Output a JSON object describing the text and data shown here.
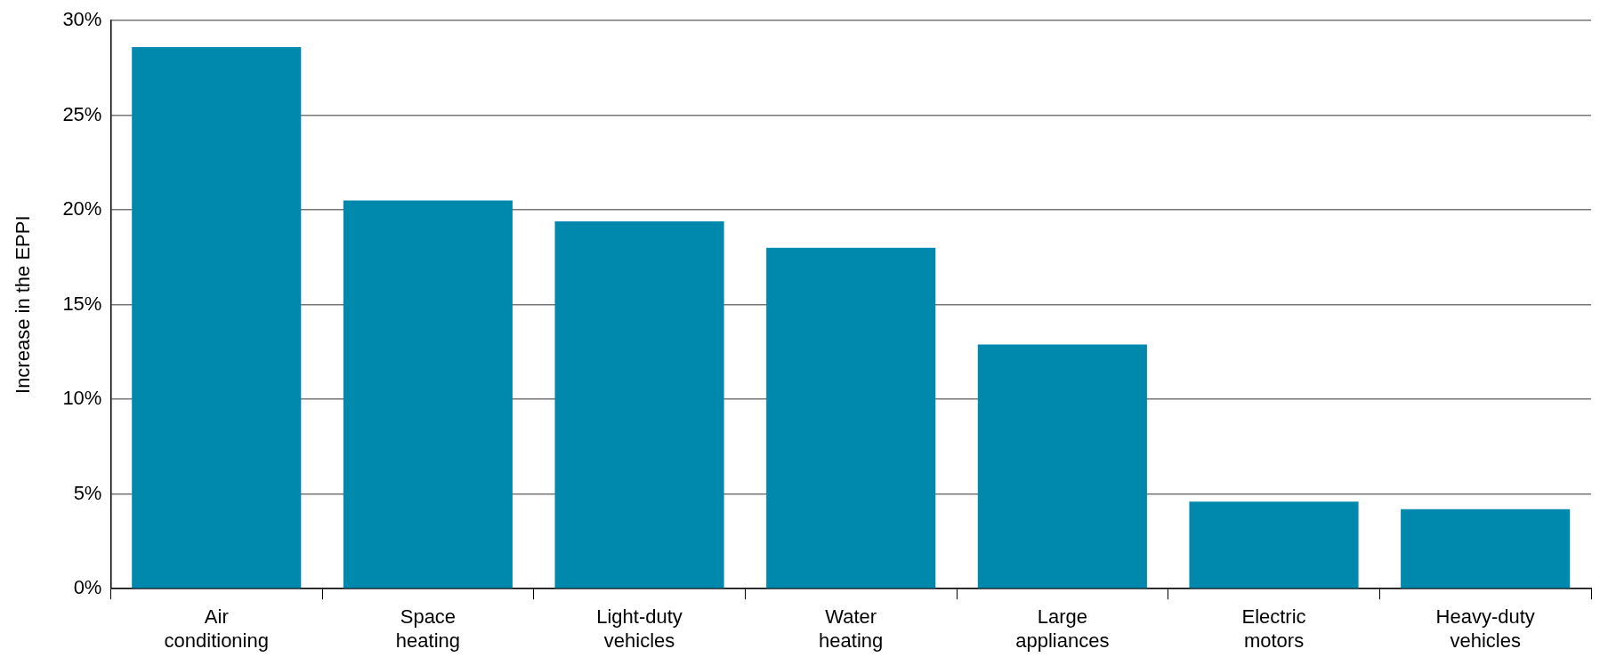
{
  "chart_data": {
    "type": "bar",
    "ylabel": "Increase in the EPPI",
    "categories": [
      "Air conditioning",
      "Space heating",
      "Light-duty vehicles",
      "Water heating",
      "Large appliances",
      "Electric motors",
      "Heavy-duty vehicles"
    ],
    "values": [
      28.6,
      20.5,
      19.4,
      18.0,
      12.9,
      4.6,
      4.2
    ],
    "color": "#0089ad",
    "ylim": [
      0,
      30
    ],
    "yticks": [
      {
        "value": 0,
        "label": "0%"
      },
      {
        "value": 5,
        "label": "5%"
      },
      {
        "value": 10,
        "label": "10%"
      },
      {
        "value": 15,
        "label": "15%"
      },
      {
        "value": 20,
        "label": "20%"
      },
      {
        "value": 25,
        "label": "25%"
      },
      {
        "value": 30,
        "label": "30%"
      }
    ],
    "grid": "y",
    "legend": false
  }
}
